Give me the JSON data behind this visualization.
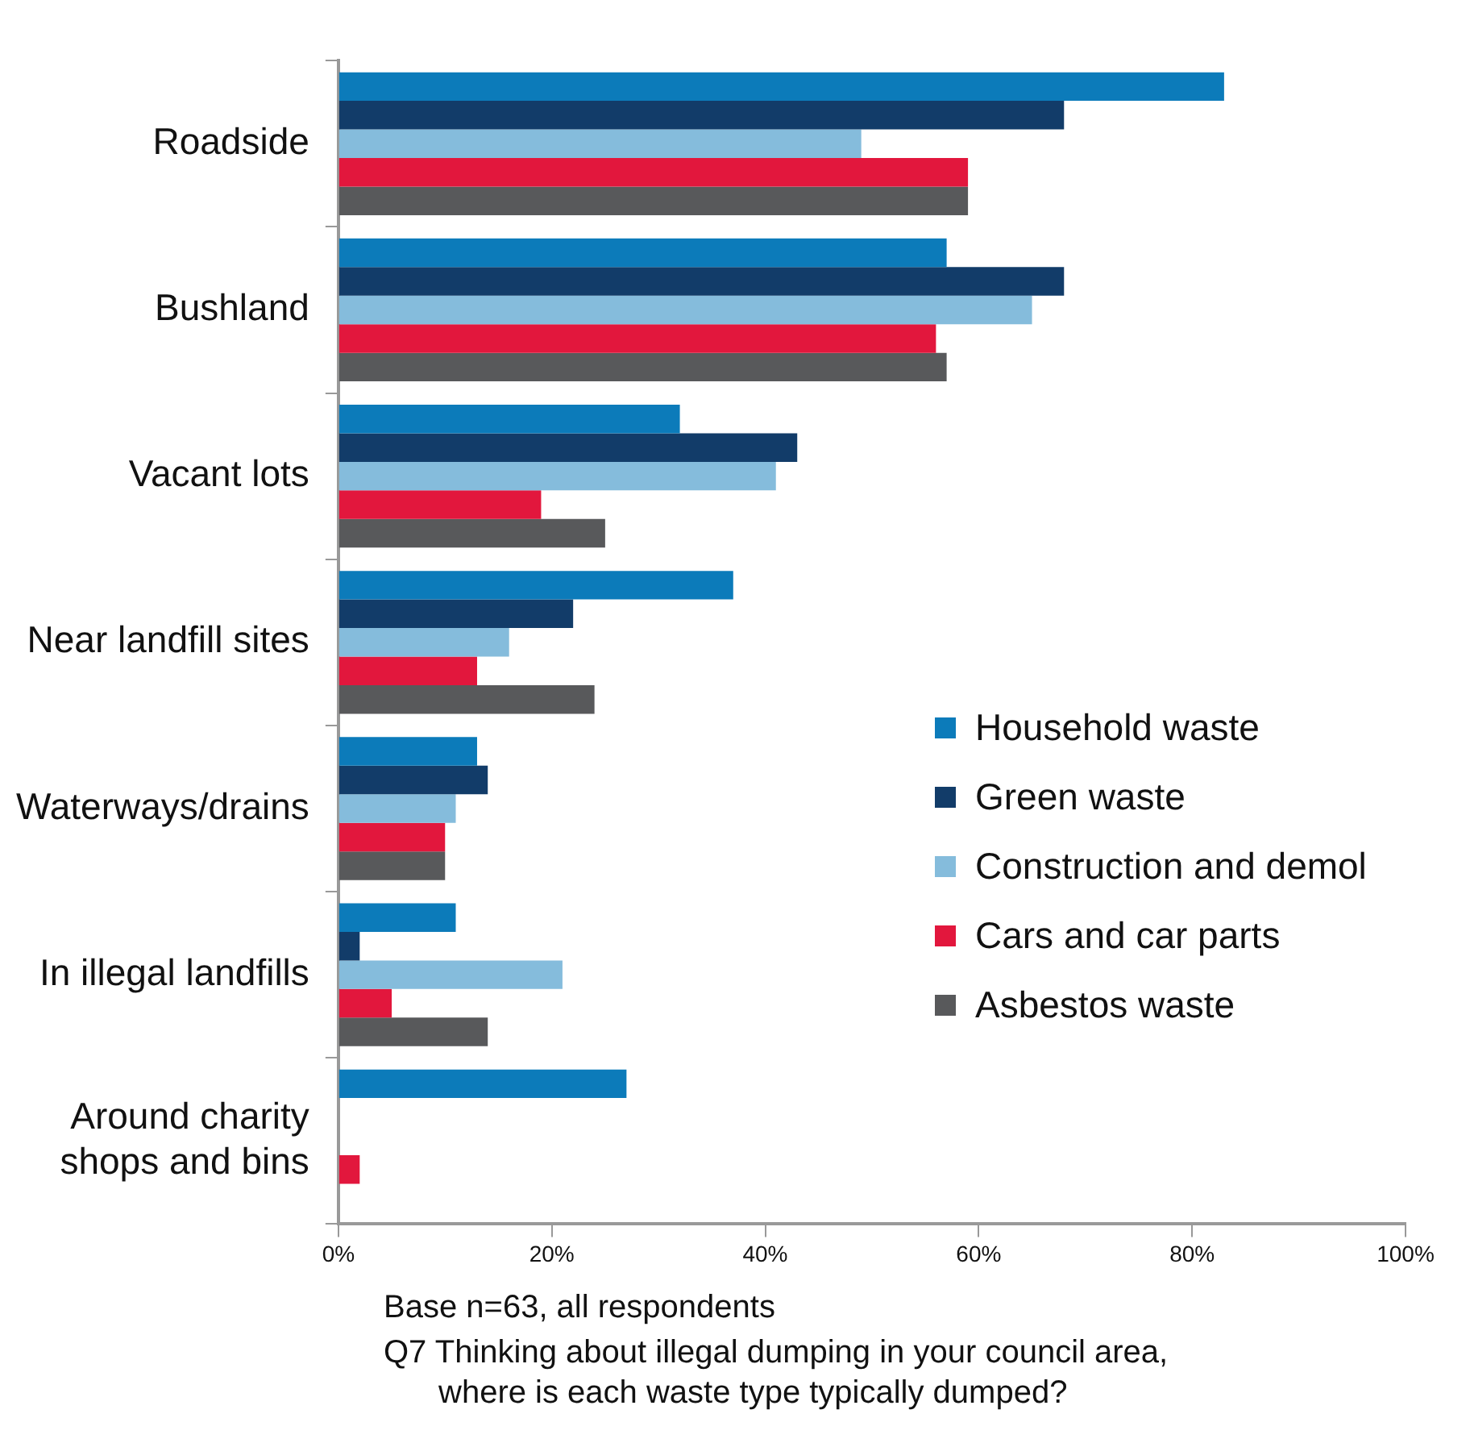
{
  "chart_data": {
    "type": "bar",
    "orientation": "horizontal",
    "categories": [
      "Roadside",
      "Bushland",
      "Vacant lots",
      "Near landfill sites",
      "Waterways/drains",
      "In illegal landfills",
      "Around charity\nshops and bins"
    ],
    "series": [
      {
        "name": "Household waste",
        "color": "#0c7bba",
        "values": [
          83,
          57,
          32,
          37,
          13,
          11,
          27
        ]
      },
      {
        "name": "Green waste",
        "color": "#123c69",
        "values": [
          68,
          68,
          43,
          22,
          14,
          2,
          null
        ]
      },
      {
        "name": "Construction and demol",
        "color": "#85bcdc",
        "values": [
          49,
          65,
          41,
          16,
          11,
          21,
          null
        ]
      },
      {
        "name": "Cars and car parts",
        "color": "#e2173d",
        "values": [
          59,
          56,
          19,
          13,
          10,
          5,
          2
        ]
      },
      {
        "name": "Asbestos waste",
        "color": "#58595b",
        "values": [
          59,
          57,
          25,
          24,
          10,
          14,
          null
        ]
      }
    ],
    "xlim": [
      0,
      100
    ],
    "xticks": [
      {
        "value": 0,
        "label": "0%"
      },
      {
        "value": 20,
        "label": "20%"
      },
      {
        "value": 40,
        "label": "40%"
      },
      {
        "value": 60,
        "label": "60%"
      },
      {
        "value": 80,
        "label": "80%"
      },
      {
        "value": 100,
        "label": "100%"
      }
    ],
    "grid": false,
    "legend": "bottom right",
    "annotations": [
      "Base n=63, all respondents",
      "Q7 Thinking about illegal dumping in your council area,\nwhere is each waste type typically dumped?"
    ]
  }
}
